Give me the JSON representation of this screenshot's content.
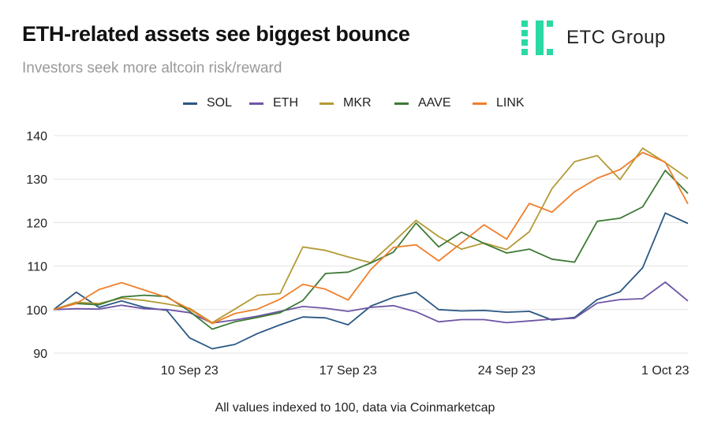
{
  "header": {
    "title": "ETH-related assets see biggest bounce",
    "subtitle": "Investors seek more altcoin risk/reward"
  },
  "logo": {
    "text": "ETC Group",
    "accent": "#2ad9a3",
    "icon": "etc-group-logo-icon"
  },
  "footer": {
    "note": "All values indexed to 100, data via Coinmarketcap"
  },
  "chart_data": {
    "type": "line",
    "title": "ETH-related assets see biggest bounce",
    "subtitle": "Investors seek more altcoin risk/reward",
    "xlabel": "",
    "ylabel": "",
    "ylim": [
      90,
      140
    ],
    "yticks": [
      90,
      100,
      110,
      120,
      130,
      140
    ],
    "grid": "horizontal",
    "legend_position": "top",
    "x": [
      0,
      1,
      2,
      3,
      4,
      5,
      6,
      7,
      8,
      9,
      10,
      11,
      12,
      13,
      14,
      15,
      16,
      17,
      18,
      19,
      20,
      21,
      22,
      23,
      24,
      25,
      26,
      27,
      28
    ],
    "x_tick_labels": [
      {
        "x": 6,
        "label": "10 Sep 23"
      },
      {
        "x": 13,
        "label": "17 Sep 23"
      },
      {
        "x": 20,
        "label": "24 Sep 23"
      },
      {
        "x": 27,
        "label": "1 Oct 23"
      }
    ],
    "series": [
      {
        "name": "SOL",
        "color": "#2a5783",
        "values": [
          100,
          104,
          100.5,
          102,
          100.5,
          99.8,
          93.5,
          91,
          92,
          94.5,
          96.5,
          98.3,
          98.1,
          96.5,
          100.8,
          102.8,
          104,
          100,
          99.7,
          99.8,
          99.4,
          99.6,
          97.6,
          98.2,
          102.3,
          104.1,
          109.6,
          122.2,
          119.8
        ]
      },
      {
        "name": "ETH",
        "color": "#6f55a6",
        "values": [
          100,
          100.2,
          100.1,
          101,
          100.2,
          100,
          99.3,
          96.9,
          97.6,
          98.5,
          99.6,
          100.7,
          100.3,
          99.6,
          100.5,
          100.9,
          99.5,
          97.2,
          97.7,
          97.7,
          97,
          97.4,
          97.8,
          98,
          101.5,
          102.3,
          102.5,
          106.3,
          102
        ]
      },
      {
        "name": "MKR",
        "color": "#b49a35",
        "values": [
          100,
          101.7,
          101.4,
          102.6,
          102.1,
          101.3,
          100.3,
          97,
          100.1,
          103.3,
          103.7,
          114.4,
          113.6,
          112.1,
          110.8,
          115.5,
          120.5,
          116.8,
          113.9,
          115.3,
          113.8,
          117.9,
          127.8,
          134,
          135.4,
          129.9,
          137.1,
          133.8,
          130.1
        ]
      },
      {
        "name": "AAVE",
        "color": "#3d7a35",
        "values": [
          100,
          101.4,
          101.1,
          102.9,
          103.3,
          103,
          99.6,
          95.5,
          97.2,
          98.2,
          99.3,
          102.1,
          108.3,
          108.6,
          110.7,
          113.2,
          119.9,
          114.4,
          117.8,
          115.2,
          113,
          113.9,
          111.6,
          110.9,
          120.3,
          121,
          123.6,
          132,
          126.7
        ]
      },
      {
        "name": "LINK",
        "color": "#f07f2c",
        "values": [
          100,
          101.4,
          104.6,
          106.2,
          104.5,
          102.8,
          100.1,
          96.8,
          99.1,
          100.1,
          102.4,
          105.8,
          104.7,
          102.2,
          109.2,
          114.3,
          114.9,
          111.2,
          115.3,
          119.5,
          116.2,
          124.4,
          122.4,
          127.1,
          130.2,
          132.2,
          136.1,
          133.9,
          124.3
        ]
      }
    ]
  }
}
